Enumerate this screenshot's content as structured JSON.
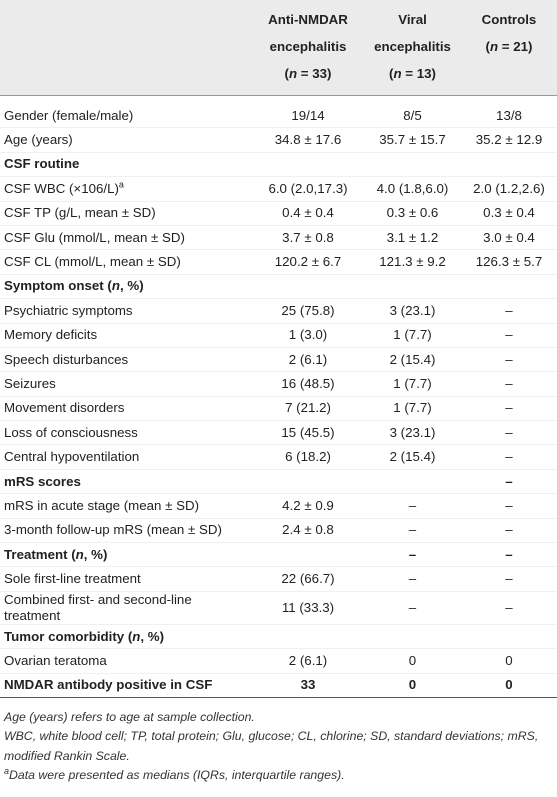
{
  "table": {
    "header": [
      {
        "lines": [
          "Anti-NMDAR",
          "encephalitis"
        ],
        "count": [
          "(",
          "n",
          " = 33)"
        ]
      },
      {
        "lines": [
          "Viral",
          "encephalitis"
        ],
        "count": [
          "(",
          "n",
          " = 13)"
        ]
      },
      {
        "lines": [
          "Controls"
        ],
        "count": [
          "(",
          "n",
          " = 21)"
        ]
      }
    ],
    "rows": [
      {
        "label": "Gender (female/male)",
        "values": [
          "19/14",
          "8/5",
          "13/8"
        ]
      },
      {
        "label": "Age (years)",
        "values": [
          "34.8 ± 17.6",
          "35.7 ± 15.7",
          "35.2 ± 12.9"
        ]
      },
      {
        "section": [
          "CSF routine"
        ],
        "values": [
          null,
          null,
          null
        ]
      },
      {
        "label": "CSF WBC (×106/L)",
        "note": "a",
        "values": [
          "6.0 (2.0,17.3)",
          "4.0 (1.8,6.0)",
          "2.0 (1.2,2.6)"
        ]
      },
      {
        "label": "CSF TP (g/L, mean ± SD)",
        "values": [
          "0.4 ± 0.4",
          "0.3 ± 0.6",
          "0.3 ± 0.4"
        ]
      },
      {
        "label": "CSF Glu (mmol/L, mean ± SD)",
        "values": [
          "3.7 ± 0.8",
          "3.1 ± 1.2",
          "3.0 ± 0.4"
        ]
      },
      {
        "label": "CSF CL (mmol/L, mean ± SD)",
        "values": [
          "120.2 ± 6.7",
          "121.3 ± 9.2",
          "126.3 ± 5.7"
        ]
      },
      {
        "section": [
          "Symptom onset (",
          "n",
          ", %)"
        ],
        "values": [
          null,
          null,
          null
        ]
      },
      {
        "label": "Psychiatric symptoms",
        "values": [
          "25 (75.8)",
          "3 (23.1)",
          "–"
        ]
      },
      {
        "label": "Memory deficits",
        "values": [
          "1 (3.0)",
          "1 (7.7)",
          "–"
        ]
      },
      {
        "label": "Speech disturbances",
        "values": [
          "2 (6.1)",
          "2 (15.4)",
          "–"
        ]
      },
      {
        "label": "Seizures",
        "values": [
          "16 (48.5)",
          "1 (7.7)",
          "–"
        ]
      },
      {
        "label": "Movement disorders",
        "values": [
          "7 (21.2)",
          "1 (7.7)",
          "–"
        ]
      },
      {
        "label": "Loss of consciousness",
        "values": [
          "15 (45.5)",
          "3 (23.1)",
          "–"
        ]
      },
      {
        "label": "Central hypoventilation",
        "values": [
          "6 (18.2)",
          "2 (15.4)",
          "–"
        ]
      },
      {
        "section": [
          "mRS scores"
        ],
        "values": [
          null,
          null,
          "–"
        ]
      },
      {
        "label": "mRS in acute stage (mean ± SD)",
        "values": [
          "4.2 ± 0.9",
          "–",
          "–"
        ]
      },
      {
        "label": "3-month follow-up mRS (mean ± SD)",
        "values": [
          "2.4 ± 0.8",
          "–",
          "–"
        ]
      },
      {
        "section": [
          "Treatment (",
          "n",
          ", %)"
        ],
        "values": [
          null,
          "–",
          "–"
        ]
      },
      {
        "label": "Sole first-line treatment",
        "values": [
          "22 (66.7)",
          "–",
          "–"
        ]
      },
      {
        "label": "Combined first- and second-line treatment",
        "values": [
          "11 (33.3)",
          "–",
          "–"
        ]
      },
      {
        "section": [
          "Tumor comorbidity (",
          "n",
          ", %)"
        ],
        "values": [
          null,
          null,
          null
        ]
      },
      {
        "label": "Ovarian teratoma",
        "values": [
          "2 (6.1)",
          "0",
          "0"
        ]
      },
      {
        "section": [
          "NMDAR antibody positive in CSF"
        ],
        "values": [
          "33",
          "0",
          "0"
        ]
      }
    ]
  },
  "footnotes": [
    {
      "text": "Age (years) refers to age at sample collection."
    },
    {
      "text": "WBC, white blood cell; TP, total protein; Glu, glucose; CL, chlorine; SD, standard deviations; mRS, modified Rankin Scale."
    },
    {
      "note": "a",
      "text": "Data were presented as medians (IQRs, interquartile ranges)."
    }
  ]
}
